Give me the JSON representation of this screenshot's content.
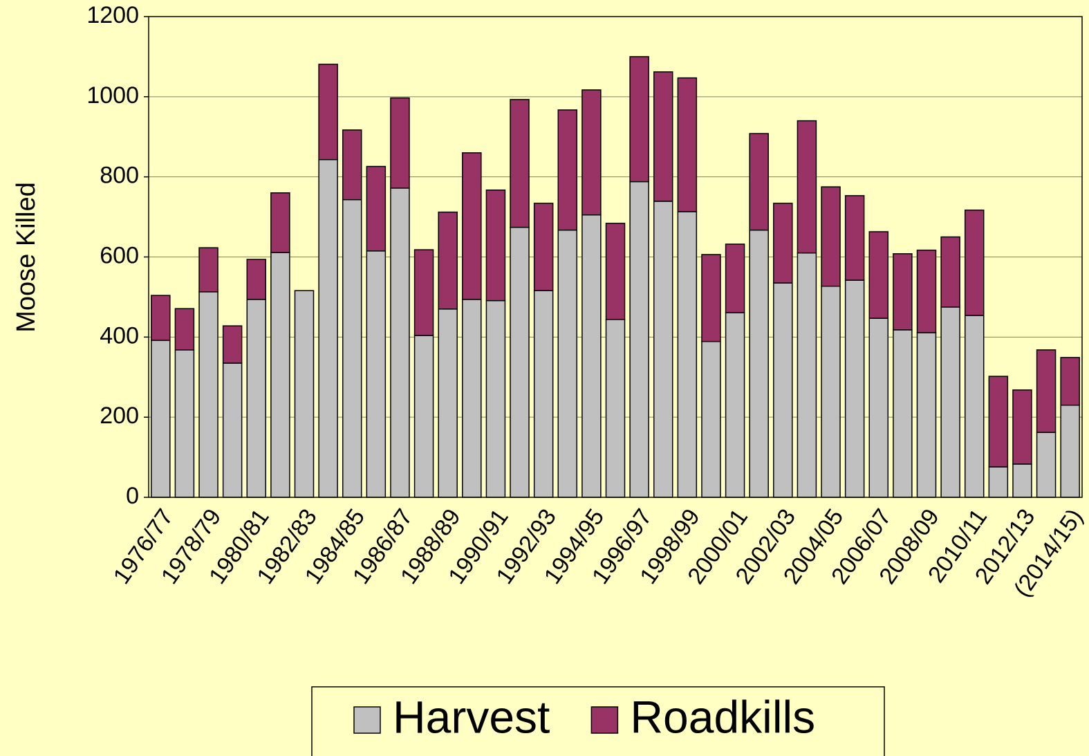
{
  "chart_data": {
    "type": "stacked_bar",
    "y_label": "Moose Killed",
    "categories": [
      "1976/77",
      null,
      "1978/79",
      null,
      "1980/81",
      null,
      "1982/83",
      null,
      "1984/85",
      null,
      "1986/87",
      null,
      "1988/89",
      null,
      "1990/91",
      null,
      "1992/93",
      null,
      "1994/95",
      null,
      "1996/97",
      null,
      "1998/99",
      null,
      "2000/01",
      null,
      "2002/03",
      null,
      "2004/05",
      null,
      "2006/07",
      null,
      "2008/09",
      null,
      "2010/11",
      null,
      "2012/13",
      null,
      "(2014/15)"
    ],
    "series": [
      {
        "name": "Harvest",
        "color": "#c0c0c0",
        "values": [
          392,
          368,
          513,
          335,
          494,
          611,
          516,
          843,
          743,
          615,
          772,
          404,
          470,
          494,
          491,
          674,
          516,
          667,
          705,
          444,
          788,
          739,
          713,
          389,
          461,
          667,
          535,
          610,
          527,
          542,
          447,
          418,
          411,
          475,
          454,
          76,
          83,
          162,
          230
        ]
      },
      {
        "name": "Roadkills",
        "color": "#993366",
        "values": [
          112,
          103,
          110,
          93,
          100,
          149,
          0,
          238,
          174,
          211,
          225,
          214,
          242,
          366,
          276,
          319,
          218,
          300,
          312,
          240,
          312,
          323,
          334,
          217,
          171,
          241,
          199,
          330,
          248,
          211,
          216,
          190,
          206,
          175,
          263,
          226,
          185,
          206,
          119
        ]
      }
    ],
    "ylim": [
      0,
      1200
    ],
    "yticks": [
      0,
      200,
      400,
      600,
      800,
      1000,
      1200
    ],
    "grid": true
  }
}
